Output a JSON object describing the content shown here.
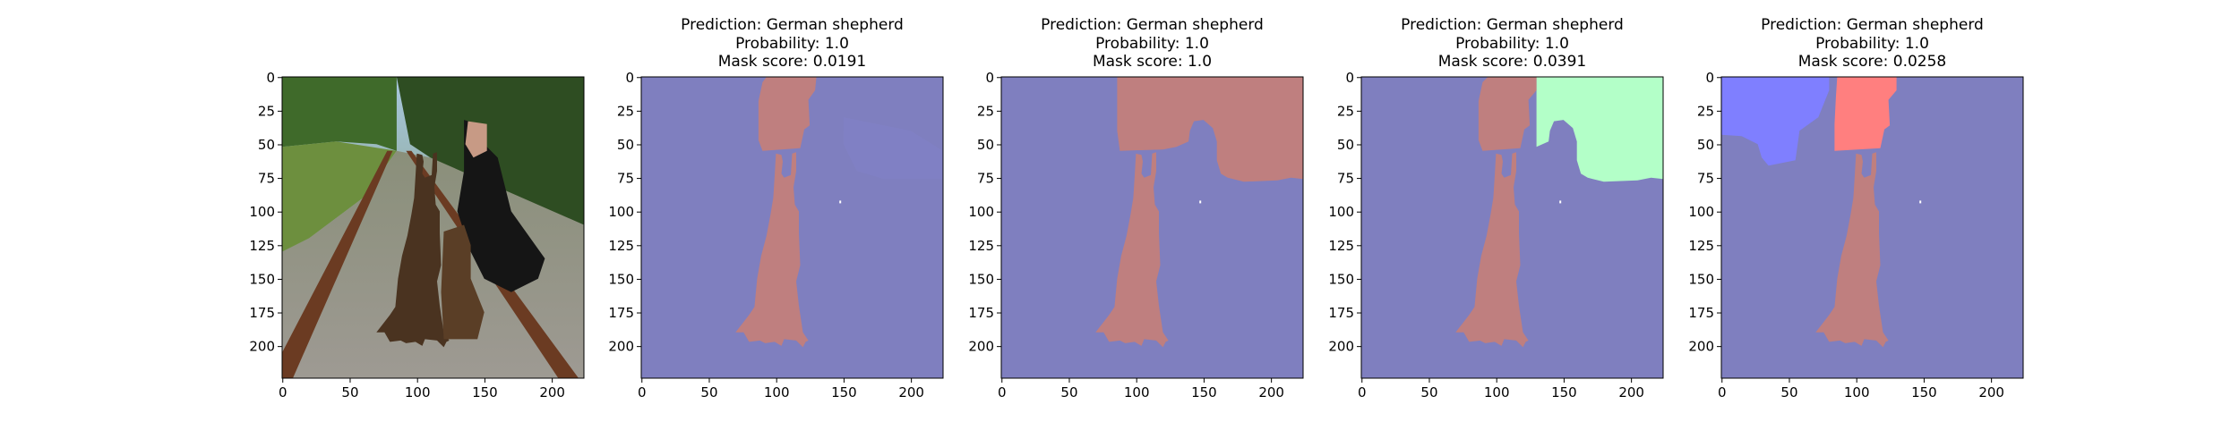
{
  "figure": {
    "panels": [
      {
        "kind": "photo",
        "title": {
          "prediction": "",
          "probability": "",
          "mask_score": ""
        },
        "image_description_icon": "photo-dogs-on-railroad-icon"
      },
      {
        "kind": "mask",
        "title": {
          "prediction": "Prediction: German shepherd",
          "probability": "Probability: 1.0",
          "mask_score": "Mask score: 0.0191"
        },
        "variant": 1
      },
      {
        "kind": "mask",
        "title": {
          "prediction": "Prediction: German shepherd",
          "probability": "Probability: 1.0",
          "mask_score": "Mask score: 1.0"
        },
        "variant": 2
      },
      {
        "kind": "mask",
        "title": {
          "prediction": "Prediction: German shepherd",
          "probability": "Probability: 1.0",
          "mask_score": "Mask score: 0.0391"
        },
        "variant": 3
      },
      {
        "kind": "mask",
        "title": {
          "prediction": "Prediction: German shepherd",
          "probability": "Probability: 1.0",
          "mask_score": "Mask score: 0.0258"
        },
        "variant": 4
      }
    ],
    "x_ticks": [
      "0",
      "50",
      "100",
      "150",
      "200"
    ],
    "y_ticks": [
      "0",
      "25",
      "50",
      "75",
      "100",
      "125",
      "150",
      "175",
      "200"
    ],
    "x_tick_values": [
      0,
      50,
      100,
      150,
      200
    ],
    "y_tick_values": [
      0,
      25,
      50,
      75,
      100,
      125,
      150,
      175,
      200
    ],
    "image_extent": [
      0,
      224
    ],
    "colors": {
      "background_segment": "#7f7fbf",
      "dog_segment": "#bf7f7f",
      "person_segment_bright": "#ff7f7f",
      "sky_segment_green": "#b3ffc8",
      "tree_segment_blue": "#7f7fff"
    }
  }
}
